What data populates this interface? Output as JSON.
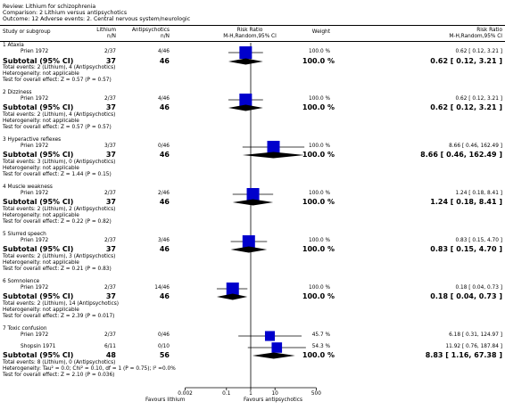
{
  "header": {
    "review": "Review:  Lithium for schizophrenia",
    "comparison": "Comparison:  2 Lithium versus antipsychotics",
    "outcome": "Outcome:  12 Adverse events: 2. Central nervous system/neurologic"
  },
  "columns": {
    "study": "Study or subgroup",
    "exp": "Lithium",
    "exp_sub": "n/N",
    "ctl": "Antipsychotics",
    "ctl_sub": "n/N",
    "rr1": "Risk Ratio",
    "rr1_sub": "M-H,Random,95% CI",
    "weight": "Weight",
    "rr2": "Risk Ratio",
    "rr2_sub": "M-H,Random,95% CI"
  },
  "subgroups": [
    {
      "title": "1 Ataxia",
      "studies": [
        {
          "name": "Prien 1972",
          "exp": "2/37",
          "ctl": "4/46",
          "weight": "100.0 %",
          "rr_text": "0.62 [ 0.12, 3.21 ]",
          "rr": 0.62,
          "lo": 0.12,
          "hi": 3.21
        }
      ],
      "subtotal": {
        "label": "Subtotal (95% CI)",
        "exp": "37",
        "ctl": "46",
        "weight": "100.0 %",
        "rr_text": "0.62 [ 0.12, 3.21 ]",
        "rr": 0.62,
        "lo": 0.12,
        "hi": 3.21
      },
      "notes": [
        "Total events: 2 (Lithium), 4 (Antipsychotics)",
        "Heterogeneity: not applicable",
        "Test for overall effect: Z = 0.57 (P = 0.57)"
      ]
    },
    {
      "title": "2 Dizziness",
      "studies": [
        {
          "name": "Prien 1972",
          "exp": "2/37",
          "ctl": "4/46",
          "weight": "100.0 %",
          "rr_text": "0.62 [ 0.12, 3.21 ]",
          "rr": 0.62,
          "lo": 0.12,
          "hi": 3.21
        }
      ],
      "subtotal": {
        "label": "Subtotal (95% CI)",
        "exp": "37",
        "ctl": "46",
        "weight": "100.0 %",
        "rr_text": "0.62 [ 0.12, 3.21 ]",
        "rr": 0.62,
        "lo": 0.12,
        "hi": 3.21
      },
      "notes": [
        "Total events: 2 (Lithium), 4 (Antipsychotics)",
        "Heterogeneity: not applicable",
        "Test for overall effect: Z = 0.57 (P = 0.57)"
      ]
    },
    {
      "title": "3 Hyperactive reflexes",
      "studies": [
        {
          "name": "Prien 1972",
          "exp": "3/37",
          "ctl": "0/46",
          "weight": "100.0 %",
          "rr_text": "8.66 [ 0.46, 162.49 ]",
          "rr": 8.66,
          "lo": 0.46,
          "hi": 162.49
        }
      ],
      "subtotal": {
        "label": "Subtotal (95% CI)",
        "exp": "37",
        "ctl": "46",
        "weight": "100.0 %",
        "rr_text": "8.66 [ 0.46, 162.49 ]",
        "rr": 8.66,
        "lo": 0.46,
        "hi": 162.49
      },
      "notes": [
        "Total events: 3 (Lithium), 0 (Antipsychotics)",
        "Heterogeneity: not applicable",
        "Test for overall effect: Z = 1.44 (P = 0.15)"
      ]
    },
    {
      "title": "4 Muscle weakness",
      "studies": [
        {
          "name": "Prien 1972",
          "exp": "2/37",
          "ctl": "2/46",
          "weight": "100.0 %",
          "rr_text": "1.24 [ 0.18, 8.41 ]",
          "rr": 1.24,
          "lo": 0.18,
          "hi": 8.41
        }
      ],
      "subtotal": {
        "label": "Subtotal (95% CI)",
        "exp": "37",
        "ctl": "46",
        "weight": "100.0 %",
        "rr_text": "1.24 [ 0.18, 8.41 ]",
        "rr": 1.24,
        "lo": 0.18,
        "hi": 8.41
      },
      "notes": [
        "Total events: 2 (Lithium), 2 (Antipsychotics)",
        "Heterogeneity: not applicable",
        "Test for overall effect: Z = 0.22 (P = 0.82)"
      ]
    },
    {
      "title": "5 Slurred speech",
      "studies": [
        {
          "name": "Prien 1972",
          "exp": "2/37",
          "ctl": "3/46",
          "weight": "100.0 %",
          "rr_text": "0.83 [ 0.15, 4.70 ]",
          "rr": 0.83,
          "lo": 0.15,
          "hi": 4.7
        }
      ],
      "subtotal": {
        "label": "Subtotal (95% CI)",
        "exp": "37",
        "ctl": "46",
        "weight": "100.0 %",
        "rr_text": "0.83 [ 0.15, 4.70 ]",
        "rr": 0.83,
        "lo": 0.15,
        "hi": 4.7
      },
      "notes": [
        "Total events: 2 (Lithium), 3 (Antipsychotics)",
        "Heterogeneity: not applicable",
        "Test for overall effect: Z = 0.21 (P = 0.83)"
      ]
    },
    {
      "title": "6 Somnolence",
      "studies": [
        {
          "name": "Prien 1972",
          "exp": "2/37",
          "ctl": "14/46",
          "weight": "100.0 %",
          "rr_text": "0.18 [ 0.04, 0.73 ]",
          "rr": 0.18,
          "lo": 0.04,
          "hi": 0.73
        }
      ],
      "subtotal": {
        "label": "Subtotal (95% CI)",
        "exp": "37",
        "ctl": "46",
        "weight": "100.0 %",
        "rr_text": "0.18 [ 0.04, 0.73 ]",
        "rr": 0.18,
        "lo": 0.04,
        "hi": 0.73
      },
      "notes": [
        "Total events: 2 (Lithium), 14 (Antipsychotics)",
        "Heterogeneity: not applicable",
        "Test for overall effect: Z = 2.39 (P = 0.017)"
      ]
    },
    {
      "title": "7 Toxic confusion",
      "studies": [
        {
          "name": "Prien 1972",
          "exp": "2/37",
          "ctl": "0/46",
          "weight": "45.7 %",
          "rr_text": "6.18 [ 0.31, 124.97 ]",
          "rr": 6.18,
          "lo": 0.31,
          "hi": 124.97
        },
        {
          "name": "Shopsin 1971",
          "exp": "6/11",
          "ctl": "0/10",
          "weight": "54.3 %",
          "rr_text": "11.92 [ 0.76, 187.84 ]",
          "rr": 11.92,
          "lo": 0.76,
          "hi": 187.84
        }
      ],
      "subtotal": {
        "label": "Subtotal (95% CI)",
        "exp": "48",
        "ctl": "56",
        "weight": "100.0 %",
        "rr_text": "8.83 [ 1.16, 67.38 ]",
        "rr": 8.83,
        "lo": 1.16,
        "hi": 67.38
      },
      "notes": [
        "Total events: 8 (Lithium), 0 (Antipsychotics)",
        "Heterogeneity: Tau² = 0.0; Chi² = 0.10, df = 1 (P = 0.75); I² =0.0%",
        "Test for overall effect: Z = 2.10 (P = 0.036)"
      ]
    }
  ],
  "axis": {
    "ticks": [
      {
        "v": 0.002,
        "label": "0.002"
      },
      {
        "v": 0.1,
        "label": "0.1"
      },
      {
        "v": 1,
        "label": "1"
      },
      {
        "v": 10,
        "label": "10"
      },
      {
        "v": 500,
        "label": "500"
      }
    ],
    "left_label": "Favours lithium",
    "right_label": "Favours antipsychotics"
  },
  "chart_data": {
    "type": "forest",
    "scale": "log",
    "xlim": [
      0.002,
      500
    ],
    "colors": {
      "study_box": "#0000cc",
      "summary": "#000000"
    },
    "rows": [
      {
        "subgroup": "1 Ataxia",
        "study": "Prien 1972",
        "rr": 0.62,
        "lo": 0.12,
        "hi": 3.21,
        "weight": 100.0
      },
      {
        "subgroup": "2 Dizziness",
        "study": "Prien 1972",
        "rr": 0.62,
        "lo": 0.12,
        "hi": 3.21,
        "weight": 100.0
      },
      {
        "subgroup": "3 Hyperactive reflexes",
        "study": "Prien 1972",
        "rr": 8.66,
        "lo": 0.46,
        "hi": 162.49,
        "weight": 100.0
      },
      {
        "subgroup": "4 Muscle weakness",
        "study": "Prien 1972",
        "rr": 1.24,
        "lo": 0.18,
        "hi": 8.41,
        "weight": 100.0
      },
      {
        "subgroup": "5 Slurred speech",
        "study": "Prien 1972",
        "rr": 0.83,
        "lo": 0.15,
        "hi": 4.7,
        "weight": 100.0
      },
      {
        "subgroup": "6 Somnolence",
        "study": "Prien 1972",
        "rr": 0.18,
        "lo": 0.04,
        "hi": 0.73,
        "weight": 100.0
      },
      {
        "subgroup": "7 Toxic confusion",
        "study": "Prien 1972",
        "rr": 6.18,
        "lo": 0.31,
        "hi": 124.97,
        "weight": 45.7
      },
      {
        "subgroup": "7 Toxic confusion",
        "study": "Shopsin 1971",
        "rr": 11.92,
        "lo": 0.76,
        "hi": 187.84,
        "weight": 54.3
      }
    ]
  }
}
